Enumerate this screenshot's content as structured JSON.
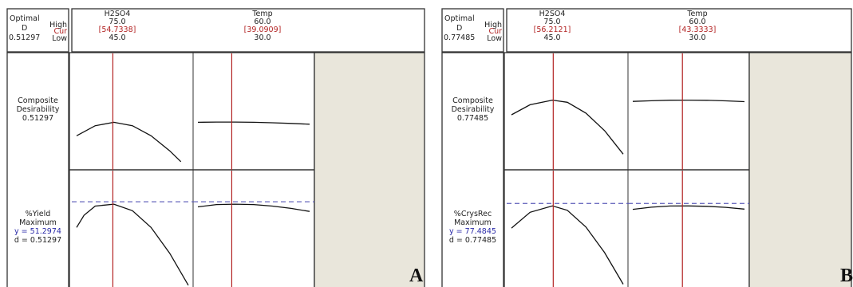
{
  "chart_data": [
    {
      "type": "line",
      "panel_label": "A",
      "header": {
        "optimal_label": "Optimal",
        "d_label": "D",
        "d_value": "0.51297",
        "high_label": "High",
        "cur_label": "Cur",
        "low_label": "Low"
      },
      "factors": [
        {
          "name": "H2SO4",
          "high": "75.0",
          "cur": "[54.7338]",
          "low": "45.0",
          "low_value": 45,
          "high_value": 75,
          "cur_value": 54.7338
        },
        {
          "name": "Temp",
          "high": "60.0",
          "cur": "[39.0909]",
          "low": "30.0",
          "low_value": 30,
          "high_value": 60,
          "cur_value": 39.0909
        }
      ],
      "rows": [
        {
          "lines": [
            "Composite",
            "Desirability",
            "0.51297"
          ],
          "ylim": [
            0,
            1
          ],
          "ref_line": null,
          "series": [
            {
              "x": [
                45,
                50,
                55,
                60,
                65,
                70,
                73
              ],
              "y": [
                0.35,
                0.47,
                0.51,
                0.47,
                0.35,
                0.17,
                0.04
              ]
            },
            {
              "x": [
                30,
                35,
                40,
                45,
                50,
                55,
                60
              ],
              "y": [
                0.51,
                0.513,
                0.513,
                0.51,
                0.505,
                0.497,
                0.488
              ]
            }
          ]
        },
        {
          "lines": [
            "%Yield",
            "Maximum"
          ],
          "y_text": "y = 51.2974",
          "d_text": "d = 0.51297",
          "ylim": [
            0,
            0.55
          ],
          "ref_line": 0.51297,
          "series": [
            {
              "x": [
                45,
                47,
                50,
                55,
                60,
                65,
                70,
                75
              ],
              "y": [
                0.36,
                0.44,
                0.5,
                0.513,
                0.47,
                0.36,
                0.19,
                -0.02
              ]
            },
            {
              "x": [
                30,
                35,
                40,
                45,
                50,
                55,
                60
              ],
              "y": [
                0.495,
                0.51,
                0.513,
                0.51,
                0.5,
                0.485,
                0.465
              ]
            }
          ]
        }
      ]
    },
    {
      "type": "line",
      "panel_label": "B",
      "header": {
        "optimal_label": "Optimal",
        "d_label": "D",
        "d_value": "0.77485",
        "high_label": "High",
        "cur_label": "Cur",
        "low_label": "Low"
      },
      "factors": [
        {
          "name": "H2SO4",
          "high": "75.0",
          "cur": "[56.2121]",
          "low": "45.0",
          "low_value": 45,
          "high_value": 75,
          "cur_value": 56.2121
        },
        {
          "name": "Temp",
          "high": "60.0",
          "cur": "[43.3333]",
          "low": "30.0",
          "low_value": 30,
          "high_value": 60,
          "cur_value": 43.3333
        }
      ],
      "rows": [
        {
          "lines": [
            "Composite",
            "Desirability",
            "0.77485"
          ],
          "ylim": [
            0,
            1
          ],
          "ref_line": null,
          "series": [
            {
              "x": [
                45,
                50,
                56,
                60,
                65,
                70,
                75
              ],
              "y": [
                0.6,
                0.72,
                0.775,
                0.75,
                0.62,
                0.41,
                0.13
              ]
            },
            {
              "x": [
                30,
                35,
                40,
                45,
                50,
                55,
                60
              ],
              "y": [
                0.76,
                0.768,
                0.774,
                0.775,
                0.773,
                0.767,
                0.757
              ]
            }
          ]
        },
        {
          "lines": [
            "%CrysRec",
            "Maximum"
          ],
          "y_text": "y = 77.4845",
          "d_text": "d = 0.77485",
          "ylim": [
            0,
            0.85
          ],
          "ref_line": 0.77485,
          "series": [
            {
              "x": [
                45,
                50,
                56,
                60,
                65,
                70,
                75
              ],
              "y": [
                0.55,
                0.71,
                0.775,
                0.73,
                0.56,
                0.3,
                -0.02
              ]
            },
            {
              "x": [
                30,
                35,
                40,
                45,
                50,
                55,
                60
              ],
              "y": [
                0.74,
                0.762,
                0.774,
                0.775,
                0.771,
                0.76,
                0.742
              ]
            }
          ]
        }
      ]
    }
  ],
  "colors": {
    "current": "#b22222",
    "ref_dash": "#5a5ab8",
    "y_text": "#2a2aa8",
    "filler": "#e9e6db",
    "curve": "#111111",
    "frame": "#333333"
  }
}
